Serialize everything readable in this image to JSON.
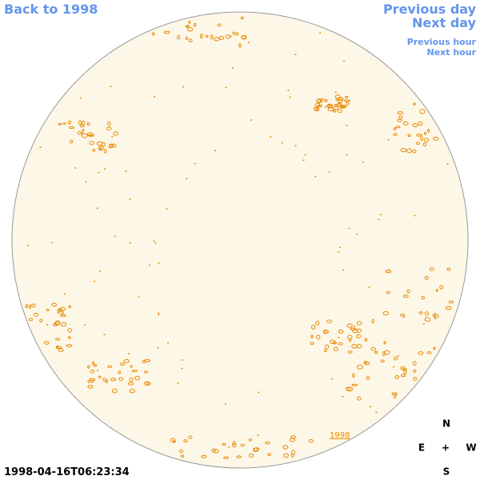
{
  "nav": {
    "back": "Back to 1998",
    "previous_day": "Previous day",
    "next_day": "Next day",
    "previous_hour": "Previous hour",
    "next_hour": "Next hour"
  },
  "image": {
    "year_link": "1998",
    "timestamp": "1998-04-16T06:23:34"
  },
  "compass": {
    "north": "N",
    "east": "E",
    "center": "+",
    "west": "W",
    "south": "S"
  }
}
